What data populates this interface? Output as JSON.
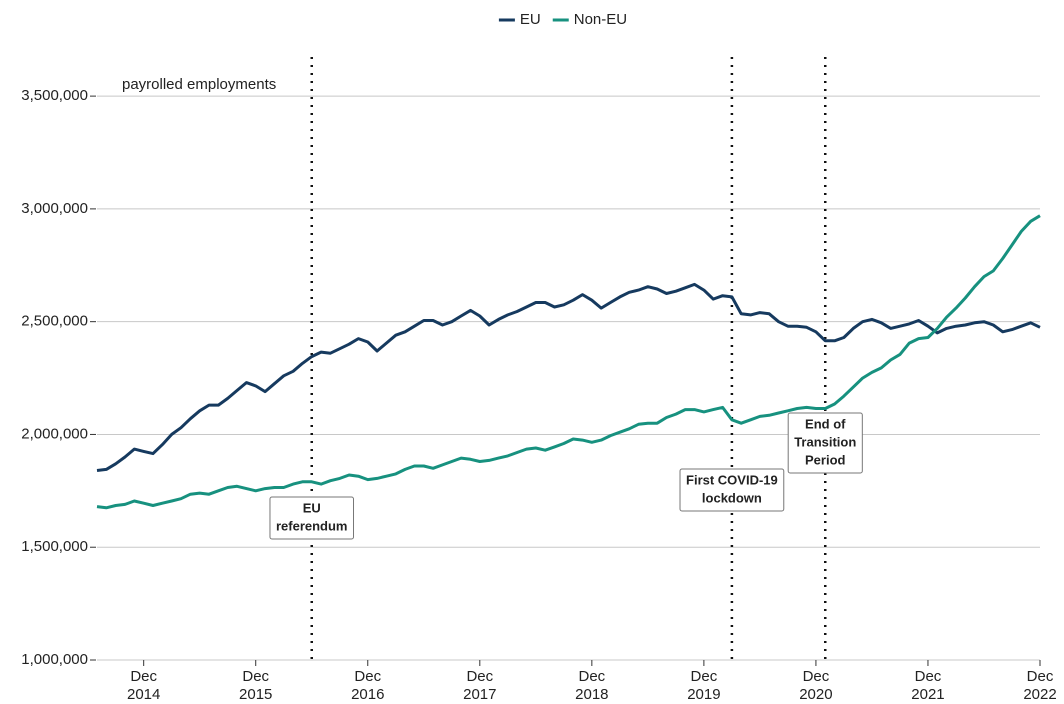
{
  "chart_data": {
    "type": "line",
    "y_label": "payrolled employments",
    "x": [
      "2014-07",
      "2014-08",
      "2014-09",
      "2014-10",
      "2014-11",
      "2014-12",
      "2015-01",
      "2015-02",
      "2015-03",
      "2015-04",
      "2015-05",
      "2015-06",
      "2015-07",
      "2015-08",
      "2015-09",
      "2015-10",
      "2015-11",
      "2015-12",
      "2016-01",
      "2016-02",
      "2016-03",
      "2016-04",
      "2016-05",
      "2016-06",
      "2016-07",
      "2016-08",
      "2016-09",
      "2016-10",
      "2016-11",
      "2016-12",
      "2017-01",
      "2017-02",
      "2017-03",
      "2017-04",
      "2017-05",
      "2017-06",
      "2017-07",
      "2017-08",
      "2017-09",
      "2017-10",
      "2017-11",
      "2017-12",
      "2018-01",
      "2018-02",
      "2018-03",
      "2018-04",
      "2018-05",
      "2018-06",
      "2018-07",
      "2018-08",
      "2018-09",
      "2018-10",
      "2018-11",
      "2018-12",
      "2019-01",
      "2019-02",
      "2019-03",
      "2019-04",
      "2019-05",
      "2019-06",
      "2019-07",
      "2019-08",
      "2019-09",
      "2019-10",
      "2019-11",
      "2019-12",
      "2020-01",
      "2020-02",
      "2020-03",
      "2020-04",
      "2020-05",
      "2020-06",
      "2020-07",
      "2020-08",
      "2020-09",
      "2020-10",
      "2020-11",
      "2020-12",
      "2021-01",
      "2021-02",
      "2021-03",
      "2021-04",
      "2021-05",
      "2021-06",
      "2021-07",
      "2021-08",
      "2021-09",
      "2021-10",
      "2021-11",
      "2021-12",
      "2022-01",
      "2022-02",
      "2022-03",
      "2022-04",
      "2022-05",
      "2022-06",
      "2022-07",
      "2022-08",
      "2022-09",
      "2022-10",
      "2022-11",
      "2022-12"
    ],
    "series": [
      {
        "name": "EU",
        "color": "#163a5f",
        "values": [
          1840000,
          1845000,
          1870000,
          1900000,
          1935000,
          1925000,
          1915000,
          1955000,
          2000000,
          2030000,
          2070000,
          2105000,
          2130000,
          2130000,
          2160000,
          2195000,
          2230000,
          2215000,
          2190000,
          2225000,
          2260000,
          2280000,
          2315000,
          2345000,
          2365000,
          2360000,
          2380000,
          2400000,
          2425000,
          2410000,
          2370000,
          2405000,
          2440000,
          2455000,
          2480000,
          2505000,
          2505000,
          2485000,
          2500000,
          2525000,
          2550000,
          2525000,
          2485000,
          2510000,
          2530000,
          2545000,
          2565000,
          2585000,
          2585000,
          2565000,
          2575000,
          2595000,
          2620000,
          2595000,
          2560000,
          2585000,
          2610000,
          2630000,
          2640000,
          2655000,
          2645000,
          2625000,
          2635000,
          2650000,
          2665000,
          2640000,
          2600000,
          2615000,
          2610000,
          2535000,
          2530000,
          2540000,
          2535000,
          2500000,
          2480000,
          2480000,
          2475000,
          2455000,
          2415000,
          2415000,
          2430000,
          2470000,
          2500000,
          2510000,
          2495000,
          2470000,
          2480000,
          2490000,
          2505000,
          2480000,
          2450000,
          2470000,
          2480000,
          2485000,
          2495000,
          2500000,
          2485000,
          2455000,
          2465000,
          2480000,
          2495000,
          2475000
        ]
      },
      {
        "name": "Non-EU",
        "color": "#17917f",
        "values": [
          1680000,
          1675000,
          1685000,
          1690000,
          1705000,
          1695000,
          1685000,
          1695000,
          1705000,
          1715000,
          1735000,
          1740000,
          1735000,
          1750000,
          1765000,
          1770000,
          1760000,
          1750000,
          1760000,
          1765000,
          1765000,
          1780000,
          1790000,
          1790000,
          1780000,
          1795000,
          1805000,
          1820000,
          1815000,
          1800000,
          1805000,
          1815000,
          1825000,
          1845000,
          1860000,
          1860000,
          1850000,
          1865000,
          1880000,
          1895000,
          1890000,
          1880000,
          1885000,
          1895000,
          1905000,
          1920000,
          1935000,
          1940000,
          1930000,
          1945000,
          1960000,
          1980000,
          1975000,
          1965000,
          1975000,
          1995000,
          2010000,
          2025000,
          2045000,
          2050000,
          2050000,
          2075000,
          2090000,
          2110000,
          2110000,
          2100000,
          2110000,
          2120000,
          2065000,
          2050000,
          2065000,
          2080000,
          2085000,
          2095000,
          2105000,
          2115000,
          2120000,
          2115000,
          2115000,
          2135000,
          2170000,
          2210000,
          2250000,
          2275000,
          2295000,
          2330000,
          2355000,
          2405000,
          2425000,
          2430000,
          2470000,
          2520000,
          2560000,
          2605000,
          2655000,
          2700000,
          2725000,
          2780000,
          2840000,
          2900000,
          2945000,
          2970000
        ]
      }
    ],
    "ylim": [
      1000000,
      3700000
    ],
    "yticks": [
      {
        "value": 1000000,
        "label": "1,000,000"
      },
      {
        "value": 1500000,
        "label": "1,500,000"
      },
      {
        "value": 2000000,
        "label": "2,000,000"
      },
      {
        "value": 2500000,
        "label": "2,500,000"
      },
      {
        "value": 3000000,
        "label": "3,000,000"
      },
      {
        "value": 3500000,
        "label": "3,500,000"
      }
    ],
    "xticks": [
      {
        "value": "2014-12",
        "label": [
          "Dec",
          "2014"
        ]
      },
      {
        "value": "2015-12",
        "label": [
          "Dec",
          "2015"
        ]
      },
      {
        "value": "2016-12",
        "label": [
          "Dec",
          "2016"
        ]
      },
      {
        "value": "2017-12",
        "label": [
          "Dec",
          "2017"
        ]
      },
      {
        "value": "2018-12",
        "label": [
          "Dec",
          "2018"
        ]
      },
      {
        "value": "2019-12",
        "label": [
          "Dec",
          "2019"
        ]
      },
      {
        "value": "2020-12",
        "label": [
          "Dec",
          "2020"
        ]
      },
      {
        "value": "2021-12",
        "label": [
          "Dec",
          "2021"
        ]
      },
      {
        "value": "2022-12",
        "label": [
          "Dec",
          "2022"
        ]
      }
    ],
    "annotations": [
      {
        "x": "2016-06",
        "label": [
          "EU",
          "referendum"
        ]
      },
      {
        "x": "2020-03",
        "label": [
          "First COVID-19",
          "lockdown"
        ]
      },
      {
        "x": "2021-01",
        "label": [
          "End of",
          "Transition",
          "Period"
        ]
      }
    ],
    "grid": true,
    "legend": "top"
  }
}
